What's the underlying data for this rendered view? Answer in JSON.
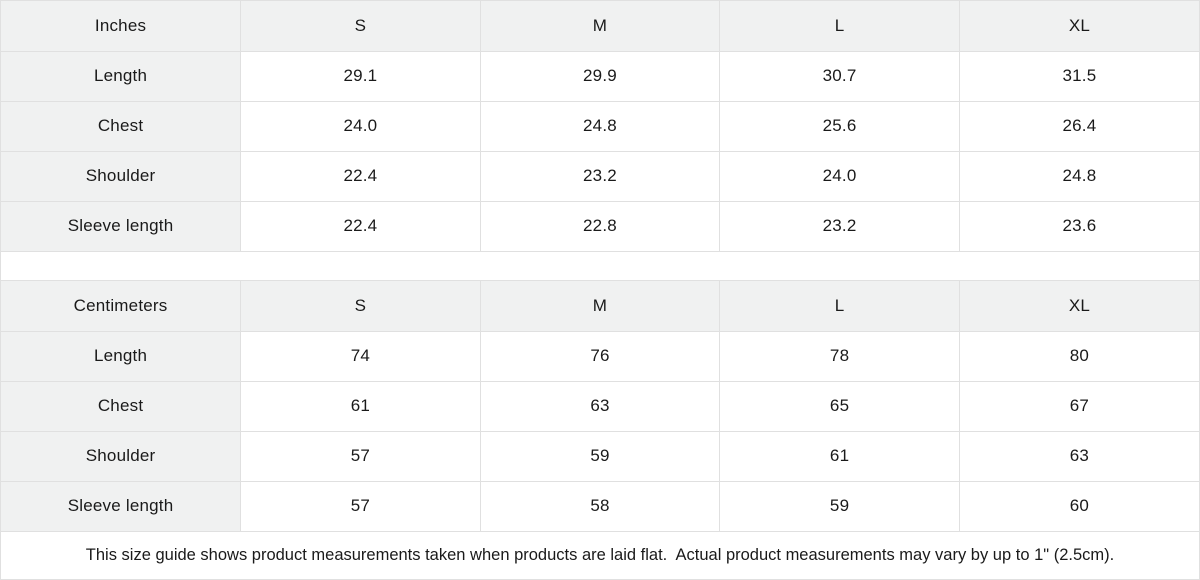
{
  "colors": {
    "cell_bg": "#f0f1f1",
    "border_color": "#e0e0e0",
    "text_color": "#1a1a1a",
    "panel_bg": "#ffffff"
  },
  "tables": [
    {
      "unit_label": "Inches",
      "sizes": [
        "S",
        "M",
        "L",
        "XL"
      ],
      "rows": [
        {
          "label": "Length",
          "values": [
            "29.1",
            "29.9",
            "30.7",
            "31.5"
          ]
        },
        {
          "label": "Chest",
          "values": [
            "24.0",
            "24.8",
            "25.6",
            "26.4"
          ]
        },
        {
          "label": "Shoulder",
          "values": [
            "22.4",
            "23.2",
            "24.0",
            "24.8"
          ]
        },
        {
          "label": "Sleeve length",
          "values": [
            "22.4",
            "22.8",
            "23.2",
            "23.6"
          ]
        }
      ]
    },
    {
      "unit_label": "Centimeters",
      "sizes": [
        "S",
        "M",
        "L",
        "XL"
      ],
      "rows": [
        {
          "label": "Length",
          "values": [
            "74",
            "76",
            "78",
            "80"
          ]
        },
        {
          "label": "Chest",
          "values": [
            "61",
            "63",
            "65",
            "67"
          ]
        },
        {
          "label": "Shoulder",
          "values": [
            "57",
            "59",
            "61",
            "63"
          ]
        },
        {
          "label": "Sleeve length",
          "values": [
            "57",
            "58",
            "59",
            "60"
          ]
        }
      ]
    }
  ],
  "footer": {
    "note": "This size guide shows product measurements taken when products are laid flat.  Actual product measurements may vary by up to 1\" (2.5cm)."
  }
}
